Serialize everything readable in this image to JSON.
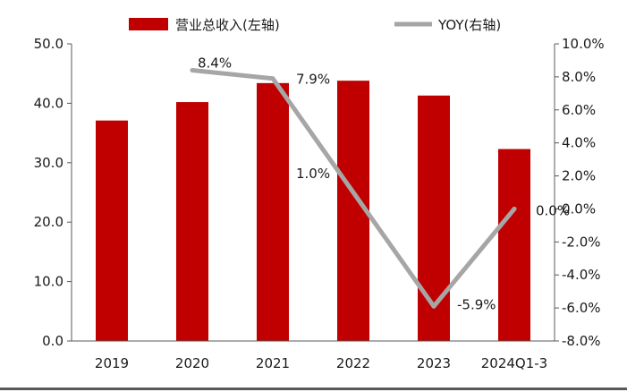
{
  "chart_data": {
    "type": "bar",
    "categories": [
      "2019",
      "2020",
      "2021",
      "2022",
      "2023",
      "2024Q1-3"
    ],
    "series": [
      {
        "name": "营业总收入(左轴)",
        "type": "bar",
        "axis": "left",
        "color": "#c00000",
        "values": [
          37.1,
          40.2,
          43.4,
          43.8,
          41.3,
          32.3
        ]
      },
      {
        "name": "YOY(右轴)",
        "type": "line",
        "axis": "right",
        "color": "#a6a6a6",
        "values": [
          null,
          8.4,
          7.9,
          1.0,
          -5.9,
          0.0
        ],
        "labels": [
          "",
          "8.4%",
          "7.9%",
          "1.0%",
          "-5.9%",
          "0.0%"
        ]
      }
    ],
    "left_axis": {
      "ylim": [
        0,
        50
      ],
      "ticks": [
        "0.0",
        "10.0",
        "20.0",
        "30.0",
        "40.0",
        "50.0"
      ]
    },
    "right_axis": {
      "ylim": [
        -8,
        10
      ],
      "ticks": [
        "-8.0%",
        "-6.0%",
        "-4.0%",
        "-2.0%",
        "0.0%",
        "2.0%",
        "4.0%",
        "6.0%",
        "8.0%",
        "10.0%"
      ]
    },
    "legend_position": "top",
    "grid": false
  }
}
